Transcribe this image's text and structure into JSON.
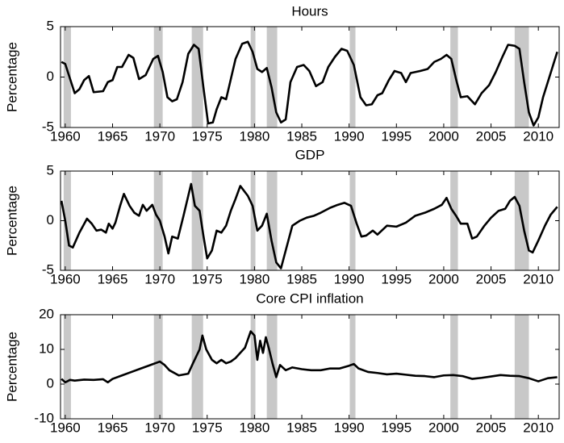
{
  "chart_data": [
    {
      "type": "line",
      "title": "Hours",
      "ylabel": "Percentage",
      "color": "#000000",
      "shade_color": "#c8c8c8",
      "xlim": [
        1959.5,
        2012.2
      ],
      "ylim": [
        -5,
        5
      ],
      "yticks": [
        -5,
        0,
        5
      ],
      "xticks": [
        1960,
        1965,
        1970,
        1975,
        1980,
        1985,
        1990,
        1995,
        2000,
        2005,
        2010
      ],
      "recessions": [
        [
          1959.83,
          1960.6
        ],
        [
          1969.37,
          1970.3
        ],
        [
          1973.37,
          1974.57
        ],
        [
          1979.6,
          1980.1
        ],
        [
          1981.3,
          1982.4
        ],
        [
          1990.07,
          1990.67
        ],
        [
          2000.7,
          2001.5
        ],
        [
          2007.5,
          2009.0
        ]
      ],
      "x": [
        1959.6,
        1960,
        1961,
        1961.5,
        1962,
        1962.5,
        1963,
        1964,
        1964.5,
        1965,
        1965.5,
        1966,
        1966.7,
        1967.2,
        1967.8,
        1968.5,
        1969.3,
        1969.8,
        1970.3,
        1970.8,
        1971.3,
        1971.8,
        1972.4,
        1973,
        1973.6,
        1974.1,
        1974.6,
        1975.1,
        1975.6,
        1976,
        1976.5,
        1977,
        1977.5,
        1978,
        1978.7,
        1979.3,
        1979.8,
        1980.3,
        1980.8,
        1981.3,
        1981.8,
        1982.3,
        1982.8,
        1983.3,
        1983.8,
        1984.5,
        1985.2,
        1985.8,
        1986.5,
        1987.2,
        1987.8,
        1988.5,
        1989.2,
        1989.8,
        1990.5,
        1991.2,
        1991.8,
        1992.4,
        1993,
        1993.5,
        1994.2,
        1994.8,
        1995.5,
        1996,
        1996.5,
        1997.5,
        1998.3,
        1999,
        1999.7,
        2000.3,
        2000.8,
        2001.3,
        2001.8,
        2002.5,
        2003.3,
        2004,
        2004.8,
        2005.5,
        2006.2,
        2006.8,
        2007.5,
        2008,
        2008.5,
        2009,
        2009.5,
        2010,
        2010.5,
        2011,
        2011.5,
        2012
      ],
      "values": [
        1.5,
        1.3,
        -1.6,
        -1.2,
        -0.3,
        0.1,
        -1.5,
        -1.4,
        -0.5,
        -0.3,
        1.0,
        1.0,
        2.2,
        1.9,
        -0.2,
        0.2,
        1.8,
        2.1,
        0.5,
        -2.0,
        -2.4,
        -2.2,
        -0.5,
        2.3,
        3.2,
        2.8,
        -1.0,
        -4.6,
        -4.5,
        -3.2,
        -2.0,
        -2.2,
        -0.2,
        1.8,
        3.3,
        3.5,
        2.5,
        0.8,
        0.5,
        0.9,
        -1.0,
        -3.5,
        -4.5,
        -4.2,
        -0.5,
        1.0,
        1.2,
        0.6,
        -0.9,
        -0.5,
        1.0,
        2.0,
        2.8,
        2.6,
        1.2,
        -2.0,
        -2.8,
        -2.7,
        -1.8,
        -1.6,
        -0.3,
        0.6,
        0.4,
        -0.5,
        0.4,
        0.6,
        0.8,
        1.5,
        1.8,
        2.2,
        1.8,
        -0.2,
        -2.0,
        -1.9,
        -2.7,
        -1.6,
        -0.8,
        0.5,
        2.0,
        3.2,
        3.1,
        2.8,
        -0.5,
        -3.5,
        -4.8,
        -4.0,
        -2.0,
        -0.5,
        1.0,
        2.5
      ]
    },
    {
      "type": "line",
      "title": "GDP",
      "ylabel": "Percentage",
      "color": "#000000",
      "shade_color": "#c8c8c8",
      "xlim": [
        1959.5,
        2012.2
      ],
      "ylim": [
        -5,
        5
      ],
      "yticks": [
        -5,
        0,
        5
      ],
      "xticks": [
        1960,
        1965,
        1970,
        1975,
        1980,
        1985,
        1990,
        1995,
        2000,
        2005,
        2010
      ],
      "recessions": [
        [
          1959.83,
          1960.6
        ],
        [
          1969.37,
          1970.3
        ],
        [
          1973.37,
          1974.57
        ],
        [
          1979.6,
          1980.1
        ],
        [
          1981.3,
          1982.4
        ],
        [
          1990.07,
          1990.67
        ],
        [
          2000.7,
          2001.5
        ],
        [
          2007.5,
          2009.0
        ]
      ],
      "x": [
        1959.6,
        1960,
        1960.4,
        1960.8,
        1961.5,
        1962.3,
        1962.8,
        1963.3,
        1963.8,
        1964.3,
        1964.6,
        1965,
        1965.3,
        1965.8,
        1966.2,
        1966.8,
        1967.3,
        1967.8,
        1968.2,
        1968.6,
        1969.2,
        1969.6,
        1970,
        1970.5,
        1970.9,
        1971.3,
        1971.9,
        1972.5,
        1973,
        1973.3,
        1973.7,
        1974.2,
        1974.6,
        1975,
        1975.5,
        1976,
        1976.5,
        1977,
        1977.5,
        1978,
        1978.5,
        1979.3,
        1979.8,
        1980.3,
        1980.8,
        1981.3,
        1981.8,
        1982.3,
        1982.8,
        1983.3,
        1984,
        1984.8,
        1985.5,
        1986.3,
        1987,
        1988,
        1988.8,
        1989.5,
        1990.2,
        1990.8,
        1991.3,
        1991.8,
        1992.5,
        1993,
        1994,
        1995,
        1996,
        1997,
        1998,
        1999,
        1999.8,
        2000.3,
        2000.8,
        2001.3,
        2001.8,
        2002.5,
        2003,
        2003.5,
        2004.3,
        2005,
        2005.8,
        2006.5,
        2007,
        2007.5,
        2008,
        2008.5,
        2009,
        2009.4,
        2010,
        2010.7,
        2011.3,
        2012
      ],
      "values": [
        2.0,
        0,
        -2.5,
        -2.7,
        -1.2,
        0.2,
        -0.3,
        -1.0,
        -0.9,
        -1.2,
        -0.3,
        -0.8,
        -0.2,
        1.5,
        2.7,
        1.5,
        0.8,
        0.5,
        1.6,
        1.0,
        1.6,
        0.6,
        0.0,
        -1.6,
        -3.3,
        -1.6,
        -1.8,
        0.5,
        2.5,
        3.7,
        1.5,
        1.0,
        -1.5,
        -3.8,
        -3.0,
        -1.0,
        -1.2,
        -0.5,
        1.0,
        2.2,
        3.5,
        2.5,
        1.5,
        -1.0,
        -0.5,
        0.7,
        -2.0,
        -4.2,
        -4.8,
        -3.0,
        -0.5,
        0.0,
        0.3,
        0.5,
        0.8,
        1.3,
        1.6,
        1.8,
        1.5,
        -0.3,
        -1.6,
        -1.5,
        -1.0,
        -1.4,
        -0.5,
        -0.6,
        -0.2,
        0.5,
        0.8,
        1.2,
        1.6,
        2.3,
        1.2,
        0.5,
        -0.3,
        -0.3,
        -1.8,
        -1.6,
        -0.5,
        0.3,
        1.0,
        1.2,
        2.0,
        2.4,
        1.5,
        -1.0,
        -3.0,
        -3.2,
        -2.0,
        -0.5,
        0.6,
        1.4
      ]
    },
    {
      "type": "line",
      "title": "Core CPI inflation",
      "ylabel": "Percentage",
      "color": "#000000",
      "shade_color": "#c8c8c8",
      "xlim": [
        1959.5,
        2012.2
      ],
      "ylim": [
        -10,
        20
      ],
      "yticks": [
        -10,
        0,
        10,
        20
      ],
      "xticks": [
        1960,
        1965,
        1970,
        1975,
        1980,
        1985,
        1990,
        1995,
        2000,
        2005,
        2010
      ],
      "recessions": [
        [
          1959.83,
          1960.6
        ],
        [
          1969.37,
          1970.3
        ],
        [
          1973.37,
          1974.57
        ],
        [
          1979.6,
          1980.1
        ],
        [
          1981.3,
          1982.4
        ],
        [
          1990.07,
          1990.67
        ],
        [
          2000.7,
          2001.5
        ],
        [
          2007.5,
          2009.0
        ]
      ],
      "x": [
        1959.6,
        1960,
        1960.5,
        1961,
        1962,
        1963,
        1964,
        1964.5,
        1965,
        1966,
        1967,
        1968,
        1969,
        1970,
        1970.5,
        1971,
        1972,
        1973,
        1973.5,
        1974.2,
        1974.5,
        1974.9,
        1975.5,
        1976,
        1976.5,
        1977,
        1977.5,
        1978,
        1978.5,
        1979,
        1979.6,
        1980,
        1980.3,
        1980.6,
        1980.9,
        1981.2,
        1981.5,
        1981.9,
        1982.3,
        1982.7,
        1983.3,
        1984,
        1985,
        1986,
        1987,
        1988,
        1989,
        1990,
        1990.5,
        1991,
        1992,
        1993,
        1994,
        1995,
        1996,
        1997,
        1998,
        1999,
        2000,
        2001,
        2002,
        2003,
        2004,
        2005,
        2006,
        2007,
        2008,
        2009,
        2010,
        2011,
        2012
      ],
      "values": [
        1.5,
        0.5,
        1.2,
        1.0,
        1.3,
        1.2,
        1.4,
        0.5,
        1.5,
        2.5,
        3.5,
        4.5,
        5.5,
        6.5,
        5.5,
        4.0,
        2.5,
        3.0,
        6.0,
        10,
        14,
        10,
        7.0,
        6.0,
        7.0,
        6.0,
        6.5,
        7.5,
        9.0,
        10.5,
        15.2,
        14.0,
        7.0,
        12.5,
        9.0,
        13.5,
        10.5,
        6.0,
        2.0,
        5.5,
        4.0,
        4.8,
        4.3,
        4.0,
        4.0,
        4.5,
        4.5,
        5.3,
        5.8,
        4.5,
        3.5,
        3.2,
        2.8,
        3.0,
        2.7,
        2.4,
        2.3,
        2.0,
        2.5,
        2.6,
        2.3,
        1.5,
        1.8,
        2.2,
        2.6,
        2.4,
        2.3,
        1.7,
        0.8,
        1.7,
        2.0
      ]
    }
  ]
}
